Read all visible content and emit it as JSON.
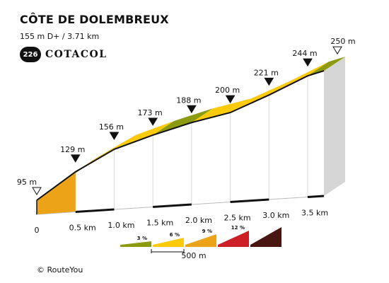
{
  "header": {
    "title": "CÔTE DE DOLEMBREUX",
    "stats": "155 m D+ / 3.71 km"
  },
  "brand": {
    "badge": "226",
    "name": "COTACOL"
  },
  "footer": {
    "copyright": "© RouteYou"
  },
  "chart_data": {
    "type": "area",
    "title": "CÔTE DE DOLEMBREUX",
    "xlabel": "",
    "ylabel": "",
    "x_unit": "km",
    "y_unit": "m",
    "xlim": [
      0,
      3.71
    ],
    "x_ticks": [
      "0",
      "0.5 km",
      "1.0 km",
      "1.5 km",
      "2.0 km",
      "2.5 km",
      "3.0 km",
      "3.5 km"
    ],
    "points": [
      {
        "x": 0,
        "y": 95,
        "label": "95 m",
        "marker": "start"
      },
      {
        "x": 0.5,
        "y": 129,
        "label": "129 m",
        "marker": "point"
      },
      {
        "x": 1.0,
        "y": 156,
        "label": "156 m",
        "marker": "point"
      },
      {
        "x": 1.5,
        "y": 173,
        "label": "173 m",
        "marker": "point"
      },
      {
        "x": 2.0,
        "y": 188,
        "label": "188 m",
        "marker": "point"
      },
      {
        "x": 2.5,
        "y": 200,
        "label": "200 m",
        "marker": "point"
      },
      {
        "x": 3.0,
        "y": 221,
        "label": "221 m",
        "marker": "point"
      },
      {
        "x": 3.5,
        "y": 244,
        "label": "244 m",
        "marker": "point"
      },
      {
        "x": 3.71,
        "y": 250,
        "label": "250 m",
        "marker": "end"
      }
    ],
    "segment_colors": [
      "#eca317",
      "#fbcb0b",
      "#fbcb0b",
      "#8c9a10",
      "#fbcb0b",
      "#fbcb0b",
      "#fbcb0b",
      "#8c9a10"
    ],
    "legend": {
      "gradients": [
        {
          "label": "3 %",
          "color": "#8c9a10"
        },
        {
          "label": "6 %",
          "color": "#fbcb0b"
        },
        {
          "label": "9 %",
          "color": "#eca317"
        },
        {
          "label": "12 %",
          "color": "#cc2026"
        },
        {
          "label": "",
          "color": "#4a1612"
        }
      ],
      "scale_label": "500 m"
    }
  }
}
